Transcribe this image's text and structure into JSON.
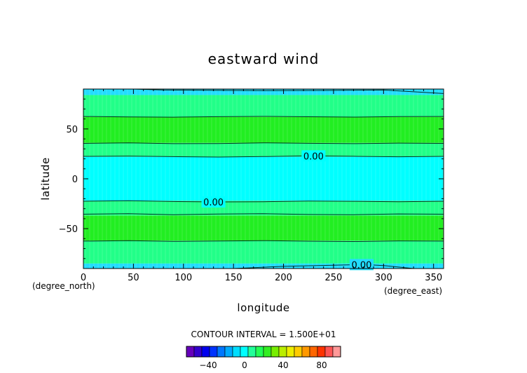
{
  "chart_data": {
    "type": "heatmap",
    "title": "eastward wind",
    "xlabel": "longitude",
    "ylabel": "latitude",
    "x_unit": "(degree_east)",
    "y_unit": "(degree_north)",
    "xlim": [
      0,
      360
    ],
    "ylim": [
      -90,
      90
    ],
    "x_ticks": [
      0,
      50,
      100,
      150,
      200,
      250,
      300,
      350
    ],
    "y_ticks": [
      -50,
      0,
      50
    ],
    "x_tick_labels": [
      "0",
      "50",
      "100",
      "150",
      "200",
      "250",
      "300",
      "350"
    ],
    "y_tick_labels": [
      "−50",
      "0",
      "50"
    ],
    "contour_interval_text": "CONTOUR INTERVAL = 1.500E+01",
    "contour_interval": 15,
    "bands": [
      {
        "lat_from": 84,
        "lat_to": 90,
        "color": "#22ddff"
      },
      {
        "lat_from": 62,
        "lat_to": 84,
        "color": "#22ff88"
      },
      {
        "lat_from": 36,
        "lat_to": 62,
        "color": "#22ee22"
      },
      {
        "lat_from": 22,
        "lat_to": 36,
        "color": "#22ff88"
      },
      {
        "lat_from": -22,
        "lat_to": 22,
        "color": "#00ffff"
      },
      {
        "lat_from": -37,
        "lat_to": -22,
        "color": "#22ff88"
      },
      {
        "lat_from": -62,
        "lat_to": -37,
        "color": "#22ee22"
      },
      {
        "lat_from": -85,
        "lat_to": -62,
        "color": "#22ff88"
      },
      {
        "lat_from": -90,
        "lat_to": -85,
        "color": "#22ddff"
      }
    ],
    "contour_lines": [
      {
        "lats": [
          62.5,
          62.0,
          61.8,
          62.3,
          62.6,
          62.2,
          61.9,
          62.4,
          62.5
        ]
      },
      {
        "lats": [
          35.5,
          36.0,
          35.2,
          35.4,
          36.1,
          35.6,
          35.2,
          35.8,
          35.5
        ]
      },
      {
        "lats": [
          22.5,
          22.8,
          22.2,
          21.8,
          22.3,
          23.0,
          22.6,
          22.1,
          22.5
        ],
        "label": "0.00",
        "label_lon": 230
      },
      {
        "lats": [
          -22.5,
          -22.0,
          -22.8,
          -23.2,
          -23.0,
          -22.3,
          -22.6,
          -23.0,
          -22.5
        ],
        "label": "0.00",
        "label_lon": 130
      },
      {
        "lats": [
          -35.5,
          -35.0,
          -36.0,
          -35.4,
          -35.0,
          -35.8,
          -36.0,
          -35.2,
          -35.5
        ]
      },
      {
        "lats": [
          -62.5,
          -62.0,
          -62.8,
          -62.4,
          -62.0,
          -62.6,
          -62.9,
          -62.3,
          -62.5
        ]
      }
    ],
    "polar_contours": [
      {
        "lons": [
          50,
          80,
          180,
          240,
          300,
          360
        ],
        "lats": [
          90,
          89.0,
          88.4,
          88.6,
          89.0,
          85.5
        ]
      },
      {
        "lons": [
          150,
          200,
          250,
          280,
          300,
          330
        ],
        "lats": [
          -90,
          -87.8,
          -86.6,
          -86.0,
          -87.0,
          -90
        ],
        "label": "0.00",
        "label_lon": 278
      }
    ],
    "colorbar": {
      "colors": [
        "#6600bb",
        "#3300cc",
        "#0000ee",
        "#0033ff",
        "#0077ff",
        "#00aaff",
        "#00ddff",
        "#00ffff",
        "#22ff99",
        "#22ff55",
        "#33ee22",
        "#77ee00",
        "#bbee00",
        "#eeee00",
        "#ffcc00",
        "#ff9900",
        "#ff6600",
        "#ff3300",
        "#ff5555",
        "#ff9999"
      ],
      "tick_labels": [
        "−40",
        "0",
        "40",
        "80"
      ]
    }
  }
}
